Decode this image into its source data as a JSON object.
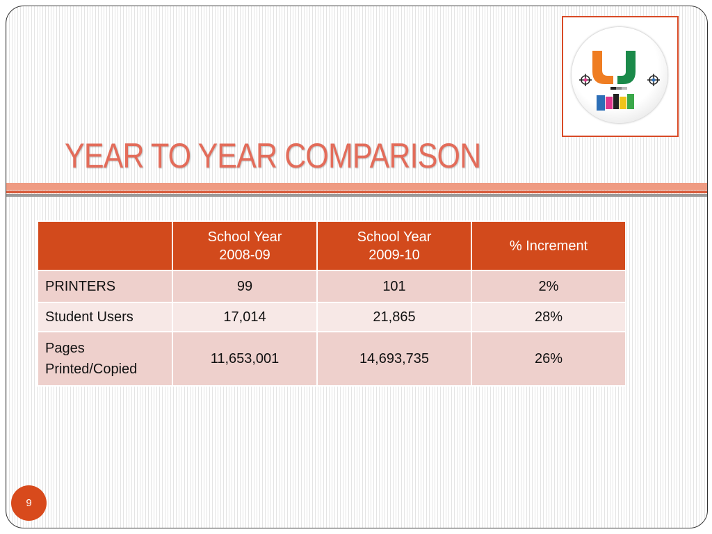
{
  "slide": {
    "title": "YEAR TO YEAR COMPARISON",
    "page_number": "9"
  },
  "logo": {
    "lettering": "U print",
    "icon": "u-print-logo"
  },
  "table": {
    "columns": [
      "",
      "School  Year\n2008-09",
      "School Year\n2009-10",
      "% Increment"
    ],
    "rows": [
      [
        "PRINTERS",
        "99",
        "101",
        "2%"
      ],
      [
        "Student Users",
        "17,014",
        "21,865",
        "28%"
      ],
      [
        "Pages\nPrinted/Copied",
        "11,653,001",
        "14,693,735",
        "26%"
      ]
    ]
  },
  "colors": {
    "title": "#e36c5a",
    "accent": "#d24a1c",
    "row_dark": "#eed0cc",
    "row_light": "#f7e8e6"
  }
}
